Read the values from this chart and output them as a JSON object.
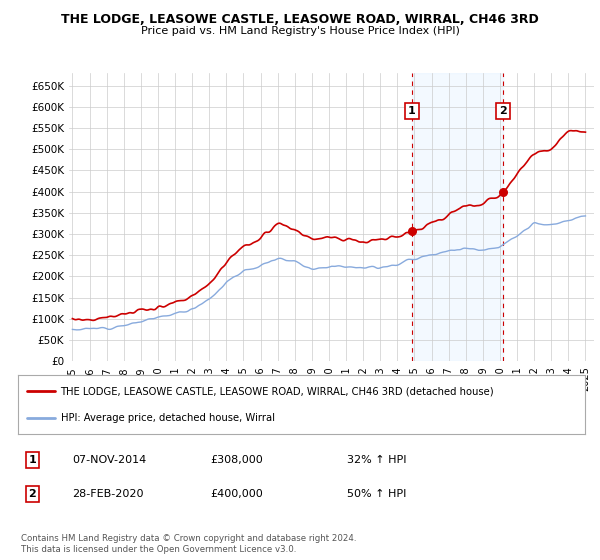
{
  "title": "THE LODGE, LEASOWE CASTLE, LEASOWE ROAD, WIRRAL, CH46 3RD",
  "subtitle": "Price paid vs. HM Land Registry's House Price Index (HPI)",
  "hpi_legend": "HPI: Average price, detached house, Wirral",
  "prop_legend": "THE LODGE, LEASOWE CASTLE, LEASOWE ROAD, WIRRAL, CH46 3RD (detached house)",
  "footnote1": "Contains HM Land Registry data © Crown copyright and database right 2024.",
  "footnote2": "This data is licensed under the Open Government Licence v3.0.",
  "annotation1": {
    "label": "1",
    "date": "07-NOV-2014",
    "price": "£308,000",
    "pct": "32% ↑ HPI"
  },
  "annotation2": {
    "label": "2",
    "date": "28-FEB-2020",
    "price": "£400,000",
    "pct": "50% ↑ HPI"
  },
  "sale1_year": 2014.85,
  "sale1_price": 308000,
  "sale2_year": 2020.16,
  "sale2_price": 400000,
  "ylim": [
    0,
    680000
  ],
  "xlim": [
    1994.8,
    2025.5
  ],
  "yticks": [
    0,
    50000,
    100000,
    150000,
    200000,
    250000,
    300000,
    350000,
    400000,
    450000,
    500000,
    550000,
    600000,
    650000
  ],
  "ytick_labels": [
    "£0",
    "£50K",
    "£100K",
    "£150K",
    "£200K",
    "£250K",
    "£300K",
    "£350K",
    "£400K",
    "£450K",
    "£500K",
    "£550K",
    "£600K",
    "£650K"
  ],
  "prop_color": "#cc0000",
  "hpi_color": "#88aadd",
  "shade_color": "#ddeeff",
  "vline_color": "#cc0000",
  "anno_box_color": "#cc0000",
  "grid_color": "#cccccc",
  "bg_color": "#ffffff",
  "hpi_years": [
    1995,
    1996,
    1997,
    1998,
    1999,
    2000,
    2001,
    2002,
    2003,
    2004,
    2005,
    2006,
    2007,
    2008,
    2009,
    2010,
    2011,
    2012,
    2013,
    2014,
    2015,
    2016,
    2017,
    2018,
    2019,
    2020,
    2021,
    2022,
    2023,
    2024,
    2025
  ],
  "hpi_vals": [
    75000,
    76000,
    79000,
    85000,
    93000,
    103000,
    112000,
    123000,
    147000,
    185000,
    213000,
    225000,
    242000,
    237000,
    217000,
    224000,
    225000,
    220000,
    222000,
    228000,
    242000,
    252000,
    261000,
    265000,
    263000,
    268000,
    295000,
    325000,
    320000,
    330000,
    345000
  ],
  "prop_years": [
    1995,
    1996,
    1997,
    1998,
    1999,
    2000,
    2001,
    2002,
    2003,
    2004,
    2005,
    2006,
    2007,
    2008,
    2009,
    2010,
    2011,
    2012,
    2013,
    2014,
    2015,
    2016,
    2017,
    2018,
    2019,
    2020,
    2021,
    2022,
    2023,
    2024,
    2025
  ],
  "prop_vals": [
    98000,
    100000,
    104000,
    110000,
    118000,
    128000,
    138000,
    152000,
    183000,
    234000,
    272000,
    285000,
    326000,
    310000,
    285000,
    292000,
    290000,
    282000,
    285000,
    295000,
    310000,
    325000,
    345000,
    365000,
    370000,
    390000,
    440000,
    490000,
    500000,
    545000,
    535000
  ]
}
